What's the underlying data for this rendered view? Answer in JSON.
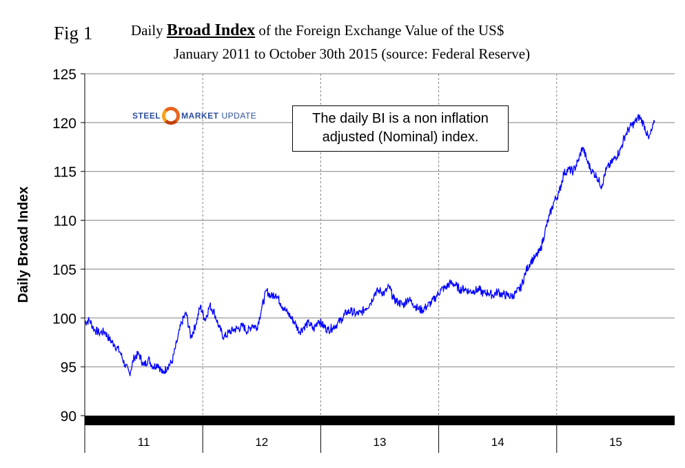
{
  "header": {
    "fig_label": "Fig 1",
    "title_prefix": "Daily",
    "title_bold": "Broad Index",
    "title_suffix": "of the Foreign Exchange Value of the US$",
    "subtitle": "January 2011 to October 30th 2015 (source: Federal Reserve)"
  },
  "logo": {
    "part1": "STEEL",
    "part2": "MARKET",
    "part3": "UPDATE"
  },
  "annotation": {
    "line1": "The daily BI is a non inflation",
    "line2": "adjusted (Nominal) index."
  },
  "colors": {
    "series": "#0000ff",
    "grid": "#808080",
    "axis": "#000000",
    "baseline_band": "#000000"
  },
  "chart_data": {
    "type": "line",
    "title": "Daily Broad Index of the Foreign Exchange Value of the US$",
    "subtitle": "January 2011 to October 30th 2015 (source: Federal Reserve)",
    "xlabel": "",
    "ylabel": "Daily Broad Index",
    "ylim": [
      90,
      125
    ],
    "yticks": [
      90,
      95,
      100,
      105,
      110,
      115,
      120,
      125
    ],
    "xlim": [
      2011.0,
      2016.0
    ],
    "xcategories": [
      "11",
      "12",
      "13",
      "14",
      "15"
    ],
    "grid": true,
    "series": [
      {
        "name": "Daily Broad Index",
        "x": [
          2011.0,
          2011.04,
          2011.08,
          2011.12,
          2011.17,
          2011.21,
          2011.25,
          2011.3,
          2011.34,
          2011.38,
          2011.42,
          2011.46,
          2011.5,
          2011.54,
          2011.58,
          2011.62,
          2011.66,
          2011.7,
          2011.74,
          2011.78,
          2011.82,
          2011.86,
          2011.9,
          2011.94,
          2011.98,
          2012.02,
          2012.06,
          2012.1,
          2012.14,
          2012.18,
          2012.22,
          2012.26,
          2012.3,
          2012.34,
          2012.38,
          2012.42,
          2012.46,
          2012.5,
          2012.54,
          2012.58,
          2012.62,
          2012.66,
          2012.7,
          2012.74,
          2012.78,
          2012.82,
          2012.86,
          2012.9,
          2012.94,
          2012.98,
          2013.02,
          2013.06,
          2013.1,
          2013.14,
          2013.18,
          2013.22,
          2013.26,
          2013.3,
          2013.34,
          2013.38,
          2013.42,
          2013.46,
          2013.5,
          2013.54,
          2013.58,
          2013.62,
          2013.66,
          2013.7,
          2013.74,
          2013.78,
          2013.82,
          2013.86,
          2013.9,
          2013.94,
          2013.98,
          2014.02,
          2014.06,
          2014.1,
          2014.14,
          2014.18,
          2014.22,
          2014.26,
          2014.3,
          2014.34,
          2014.38,
          2014.42,
          2014.46,
          2014.5,
          2014.54,
          2014.58,
          2014.62,
          2014.66,
          2014.7,
          2014.74,
          2014.78,
          2014.82,
          2014.86,
          2014.9,
          2014.94,
          2014.98,
          2015.02,
          2015.06,
          2015.1,
          2015.14,
          2015.18,
          2015.22,
          2015.26,
          2015.3,
          2015.34,
          2015.38,
          2015.42,
          2015.46,
          2015.5,
          2015.54,
          2015.58,
          2015.62,
          2015.66,
          2015.7,
          2015.74,
          2015.78,
          2015.83
        ],
        "values": [
          99.5,
          99.8,
          98.8,
          98.5,
          98.6,
          97.8,
          97.3,
          96.5,
          95.2,
          94.3,
          96.0,
          96.3,
          95.1,
          95.8,
          95.0,
          95.3,
          94.3,
          95.0,
          95.5,
          97.5,
          99.5,
          100.5,
          98.0,
          99.3,
          101.2,
          99.8,
          101.3,
          100.5,
          99.0,
          98.0,
          98.5,
          98.8,
          98.9,
          99.2,
          98.6,
          99.3,
          99.0,
          101.0,
          102.8,
          102.2,
          102.5,
          101.5,
          100.8,
          100.2,
          99.5,
          98.6,
          99.1,
          99.5,
          98.8,
          99.8,
          99.2,
          98.8,
          99.0,
          99.4,
          99.9,
          100.6,
          100.7,
          100.4,
          100.5,
          101.0,
          101.5,
          102.6,
          102.8,
          102.5,
          103.2,
          101.9,
          101.6,
          101.3,
          102.0,
          101.5,
          101.0,
          100.8,
          101.2,
          101.6,
          102.2,
          102.9,
          103.1,
          103.6,
          103.4,
          102.9,
          103.0,
          102.7,
          102.8,
          102.9,
          102.5,
          102.6,
          102.3,
          102.7,
          102.4,
          102.3,
          102.2,
          102.6,
          103.2,
          104.8,
          105.8,
          106.2,
          106.9,
          108.8,
          110.5,
          112.0,
          112.8,
          114.8,
          115.2,
          115.0,
          116.0,
          117.5,
          116.0,
          115.0,
          114.5,
          113.5,
          115.2,
          115.8,
          116.5,
          117.2,
          118.7,
          119.5,
          120.0,
          120.6,
          119.8,
          118.3,
          120.0
        ]
      }
    ],
    "annotations": [
      "The daily BI is a non inflation adjusted (Nominal) index."
    ]
  }
}
